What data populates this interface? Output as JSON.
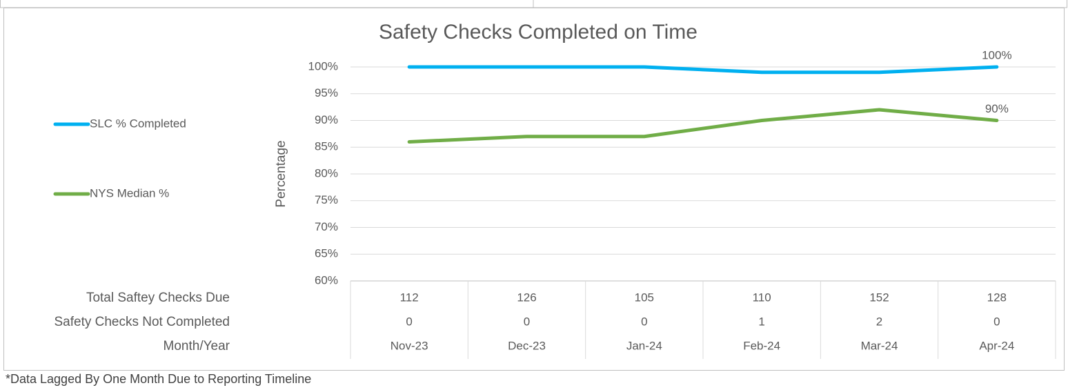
{
  "chart_data": {
    "type": "line",
    "title": "Safety Checks Completed on Time",
    "y_axis_label": "Percentage",
    "categories": [
      "Nov-23",
      "Dec-23",
      "Jan-24",
      "Feb-24",
      "Mar-24",
      "Apr-24"
    ],
    "series": [
      {
        "name": "SLC % Completed",
        "color": "#00b0f0",
        "values": [
          100,
          100,
          100,
          99,
          99,
          100
        ],
        "value_labels": [
          null,
          null,
          null,
          null,
          null,
          "100%"
        ]
      },
      {
        "name": "NYS Median %",
        "color": "#70ad47",
        "values": [
          86,
          87,
          87,
          90,
          92,
          90
        ],
        "value_labels": [
          null,
          null,
          null,
          null,
          null,
          "90%"
        ]
      }
    ],
    "ylim": [
      60,
      100
    ],
    "yticks": [
      {
        "value": 60,
        "label": "60%"
      },
      {
        "value": 65,
        "label": "65%"
      },
      {
        "value": 70,
        "label": "70%"
      },
      {
        "value": 75,
        "label": "75%"
      },
      {
        "value": 80,
        "label": "80%"
      },
      {
        "value": 85,
        "label": "85%"
      },
      {
        "value": 90,
        "label": "90%"
      },
      {
        "value": 95,
        "label": "95%"
      },
      {
        "value": 100,
        "label": "100%"
      }
    ],
    "grid": true,
    "legend": "left",
    "data_table": {
      "rows": [
        {
          "label": "Total Saftey Checks Due",
          "values": [
            112,
            126,
            105,
            110,
            152,
            128
          ]
        },
        {
          "label": "Safety Checks Not Completed",
          "values": [
            0,
            0,
            0,
            1,
            2,
            0
          ]
        }
      ],
      "category_label": "Month/Year"
    },
    "footnote": "*Data Lagged By One Month Due to Reporting Timeline"
  }
}
